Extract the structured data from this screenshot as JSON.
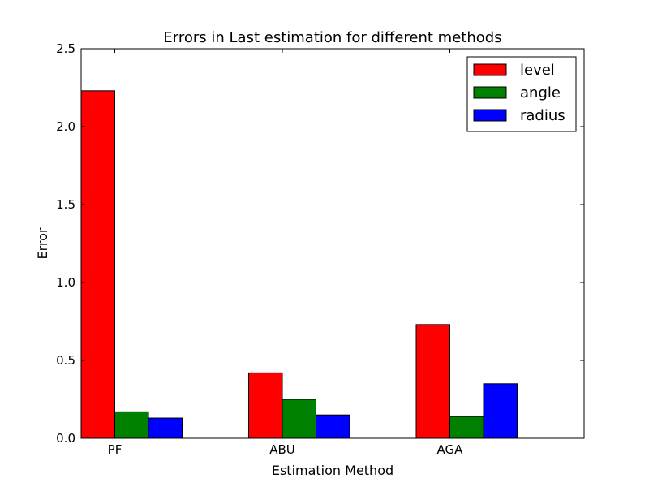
{
  "chart_data": {
    "type": "bar",
    "title": "Errors in Last estimation for different methods",
    "xlabel": "Estimation Method",
    "ylabel": "Error",
    "ylim": [
      0,
      2.5
    ],
    "yticks": [
      "0.0",
      "0.5",
      "1.0",
      "1.5",
      "2.0",
      "2.5"
    ],
    "categories": [
      "PF",
      "ABU",
      "AGA"
    ],
    "series": [
      {
        "name": "level",
        "color": "#ff0000",
        "values": [
          2.23,
          0.42,
          0.73
        ]
      },
      {
        "name": "angle",
        "color": "#008000",
        "values": [
          0.17,
          0.25,
          0.14
        ]
      },
      {
        "name": "radius",
        "color": "#0000ff",
        "values": [
          0.13,
          0.15,
          0.35
        ]
      }
    ],
    "legend_position": "top-right",
    "grid": false
  }
}
